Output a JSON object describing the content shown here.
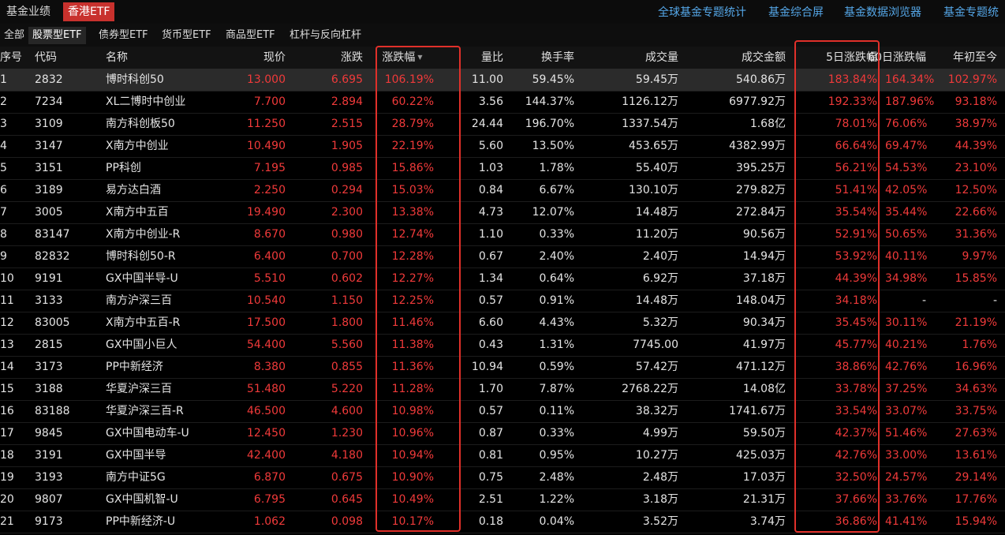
{
  "top_tabs": [
    "基金业绩",
    "香港ETF"
  ],
  "top_links": [
    "全球基金专题统计",
    "基金综合屏",
    "基金数据浏览器",
    "基金专题统"
  ],
  "categories": [
    "全部",
    "股票型ETF",
    "债券型ETF",
    "货币型ETF",
    "商品型ETF",
    "杠杆与反向杠杆"
  ],
  "columns": {
    "seq": "序号",
    "code": "代码",
    "name": "名称",
    "price": "现价",
    "chg": "涨跌",
    "pct": "涨跌幅",
    "vr": "量比",
    "to": "换手率",
    "vol": "成交量",
    "amt": "成交金额",
    "d5": "5日涨跌幅",
    "d60": "60日涨跌幅",
    "ytd": "年初至今"
  },
  "sort_indicator": "▼",
  "rows": [
    [
      "1",
      "2832",
      "博时科创50",
      "13.000",
      "6.695",
      "106.19%",
      "11.00",
      "59.45%",
      "59.45万",
      "540.86万",
      "183.84%",
      "164.34%",
      "102.97%"
    ],
    [
      "2",
      "7234",
      "XL二博时中创业",
      "7.700",
      "2.894",
      "60.22%",
      "3.56",
      "144.37%",
      "1126.12万",
      "6977.92万",
      "192.33%",
      "187.96%",
      "93.18%"
    ],
    [
      "3",
      "3109",
      "南方科创板50",
      "11.250",
      "2.515",
      "28.79%",
      "24.44",
      "196.70%",
      "1337.54万",
      "1.68亿",
      "78.01%",
      "76.06%",
      "38.97%"
    ],
    [
      "4",
      "3147",
      "X南方中创业",
      "10.490",
      "1.905",
      "22.19%",
      "5.60",
      "13.50%",
      "453.65万",
      "4382.99万",
      "66.64%",
      "69.47%",
      "44.39%"
    ],
    [
      "5",
      "3151",
      "PP科创",
      "7.195",
      "0.985",
      "15.86%",
      "1.03",
      "1.78%",
      "55.40万",
      "395.25万",
      "56.21%",
      "54.53%",
      "23.10%"
    ],
    [
      "6",
      "3189",
      "易方达白酒",
      "2.250",
      "0.294",
      "15.03%",
      "0.84",
      "6.67%",
      "130.10万",
      "279.82万",
      "51.41%",
      "42.05%",
      "12.50%"
    ],
    [
      "7",
      "3005",
      "X南方中五百",
      "19.490",
      "2.300",
      "13.38%",
      "4.73",
      "12.07%",
      "14.48万",
      "272.84万",
      "35.54%",
      "35.44%",
      "22.66%"
    ],
    [
      "8",
      "83147",
      "X南方中创业-R",
      "8.670",
      "0.980",
      "12.74%",
      "1.10",
      "0.33%",
      "11.20万",
      "90.56万",
      "52.91%",
      "50.65%",
      "31.36%"
    ],
    [
      "9",
      "82832",
      "博时科创50-R",
      "6.400",
      "0.700",
      "12.28%",
      "0.67",
      "2.40%",
      "2.40万",
      "14.94万",
      "53.92%",
      "40.11%",
      "9.97%"
    ],
    [
      "10",
      "9191",
      "GX中国半导-U",
      "5.510",
      "0.602",
      "12.27%",
      "1.34",
      "0.64%",
      "6.92万",
      "37.18万",
      "44.39%",
      "34.98%",
      "15.85%"
    ],
    [
      "11",
      "3133",
      "南方沪深三百",
      "10.540",
      "1.150",
      "12.25%",
      "0.57",
      "0.91%",
      "14.48万",
      "148.04万",
      "34.18%",
      "-",
      "-"
    ],
    [
      "12",
      "83005",
      "X南方中五百-R",
      "17.500",
      "1.800",
      "11.46%",
      "6.60",
      "4.43%",
      "5.32万",
      "90.34万",
      "35.45%",
      "30.11%",
      "21.19%"
    ],
    [
      "13",
      "2815",
      "GX中国小巨人",
      "54.400",
      "5.560",
      "11.38%",
      "0.43",
      "1.31%",
      "7745.00",
      "41.97万",
      "45.77%",
      "40.21%",
      "1.76%"
    ],
    [
      "14",
      "3173",
      "PP中新经济",
      "8.380",
      "0.855",
      "11.36%",
      "10.94",
      "0.59%",
      "57.42万",
      "471.12万",
      "38.86%",
      "42.76%",
      "16.96%"
    ],
    [
      "15",
      "3188",
      "华夏沪深三百",
      "51.480",
      "5.220",
      "11.28%",
      "1.70",
      "7.87%",
      "2768.22万",
      "14.08亿",
      "33.78%",
      "37.25%",
      "34.63%"
    ],
    [
      "16",
      "83188",
      "华夏沪深三百-R",
      "46.500",
      "4.600",
      "10.98%",
      "0.57",
      "0.11%",
      "38.32万",
      "1741.67万",
      "33.54%",
      "33.07%",
      "33.75%"
    ],
    [
      "17",
      "9845",
      "GX中国电动车-U",
      "12.450",
      "1.230",
      "10.96%",
      "0.87",
      "0.33%",
      "4.99万",
      "59.50万",
      "42.37%",
      "51.46%",
      "27.63%"
    ],
    [
      "18",
      "3191",
      "GX中国半导",
      "42.400",
      "4.180",
      "10.94%",
      "0.81",
      "0.95%",
      "10.27万",
      "425.03万",
      "42.76%",
      "33.00%",
      "13.61%"
    ],
    [
      "19",
      "3193",
      "南方中证5G",
      "6.870",
      "0.675",
      "10.90%",
      "0.75",
      "2.48%",
      "2.48万",
      "17.03万",
      "32.50%",
      "24.57%",
      "29.14%"
    ],
    [
      "20",
      "9807",
      "GX中国机智-U",
      "6.795",
      "0.645",
      "10.49%",
      "2.51",
      "1.22%",
      "3.18万",
      "21.31万",
      "37.66%",
      "33.76%",
      "17.76%"
    ],
    [
      "21",
      "9173",
      "PP中新经济-U",
      "1.062",
      "0.098",
      "10.17%",
      "0.18",
      "0.04%",
      "3.52万",
      "3.74万",
      "36.86%",
      "41.41%",
      "15.94%"
    ]
  ],
  "colors": {
    "up": "#f03a3a",
    "text": "#e4e4e4",
    "accent": "#c8312d",
    "link": "#55a7e8",
    "highlight_box": "#e0302a"
  }
}
